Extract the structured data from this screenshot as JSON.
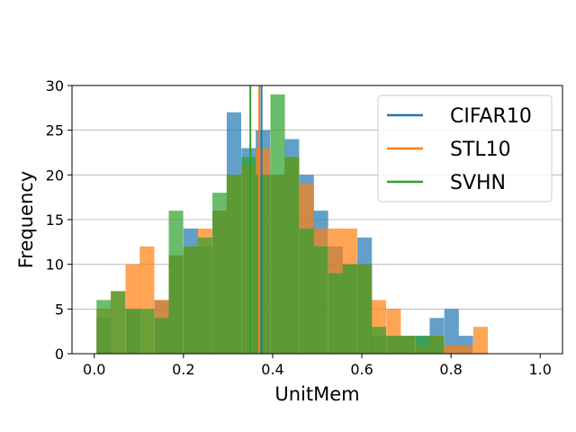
{
  "chart_data": {
    "type": "histogram",
    "title": "",
    "xlabel": "UnitMem",
    "ylabel": "Frequency",
    "xlim": [
      -0.05,
      1.05
    ],
    "ylim": [
      0,
      30
    ],
    "xticks": [
      "0.0",
      "0.2",
      "0.4",
      "0.6",
      "0.8",
      "1.0"
    ],
    "yticks": [
      "0",
      "5",
      "10",
      "15",
      "20",
      "25",
      "30"
    ],
    "grid": "horizontal",
    "legend_position": "top-right",
    "bin_width": 0.0325,
    "series": [
      {
        "name": "CIFAR10",
        "color": "#1f77b4",
        "mean": 0.375,
        "bins": [
          [
            0.005,
            4
          ],
          [
            0.07,
            5
          ],
          [
            0.135,
            6
          ],
          [
            0.167,
            11
          ],
          [
            0.2,
            14
          ],
          [
            0.232,
            12
          ],
          [
            0.265,
            16
          ],
          [
            0.297,
            27
          ],
          [
            0.33,
            23
          ],
          [
            0.362,
            25
          ],
          [
            0.395,
            20
          ],
          [
            0.427,
            24
          ],
          [
            0.46,
            20
          ],
          [
            0.492,
            16
          ],
          [
            0.525,
            12
          ],
          [
            0.557,
            10
          ],
          [
            0.59,
            13
          ],
          [
            0.622,
            2
          ],
          [
            0.655,
            2
          ],
          [
            0.687,
            2
          ],
          [
            0.72,
            2
          ],
          [
            0.752,
            4
          ],
          [
            0.785,
            5
          ],
          [
            0.817,
            2
          ]
        ]
      },
      {
        "name": "STL10",
        "color": "#ff7f0e",
        "mean": 0.37,
        "bins": [
          [
            0.005,
            5
          ],
          [
            0.037,
            7
          ],
          [
            0.07,
            10
          ],
          [
            0.102,
            12
          ],
          [
            0.135,
            6
          ],
          [
            0.167,
            11
          ],
          [
            0.2,
            12
          ],
          [
            0.232,
            14
          ],
          [
            0.265,
            16
          ],
          [
            0.297,
            20
          ],
          [
            0.33,
            21
          ],
          [
            0.362,
            23
          ],
          [
            0.395,
            20
          ],
          [
            0.427,
            22
          ],
          [
            0.46,
            19
          ],
          [
            0.492,
            14
          ],
          [
            0.525,
            14
          ],
          [
            0.557,
            14
          ],
          [
            0.59,
            10
          ],
          [
            0.622,
            6
          ],
          [
            0.655,
            5
          ],
          [
            0.687,
            2
          ],
          [
            0.72,
            1
          ],
          [
            0.752,
            2
          ],
          [
            0.785,
            1
          ],
          [
            0.817,
            1
          ],
          [
            0.85,
            3
          ]
        ]
      },
      {
        "name": "SVHN",
        "color": "#2ca02c",
        "mean": 0.35,
        "bins": [
          [
            0.005,
            6
          ],
          [
            0.037,
            7
          ],
          [
            0.07,
            5
          ],
          [
            0.102,
            5
          ],
          [
            0.135,
            4
          ],
          [
            0.167,
            16
          ],
          [
            0.2,
            12
          ],
          [
            0.232,
            13
          ],
          [
            0.265,
            18
          ],
          [
            0.297,
            20
          ],
          [
            0.33,
            22
          ],
          [
            0.362,
            20
          ],
          [
            0.395,
            29
          ],
          [
            0.427,
            22
          ],
          [
            0.46,
            14
          ],
          [
            0.492,
            12
          ],
          [
            0.525,
            9
          ],
          [
            0.557,
            10
          ],
          [
            0.59,
            10
          ],
          [
            0.622,
            3
          ],
          [
            0.655,
            2
          ],
          [
            0.687,
            2
          ],
          [
            0.72,
            2
          ],
          [
            0.752,
            2
          ]
        ]
      }
    ]
  }
}
